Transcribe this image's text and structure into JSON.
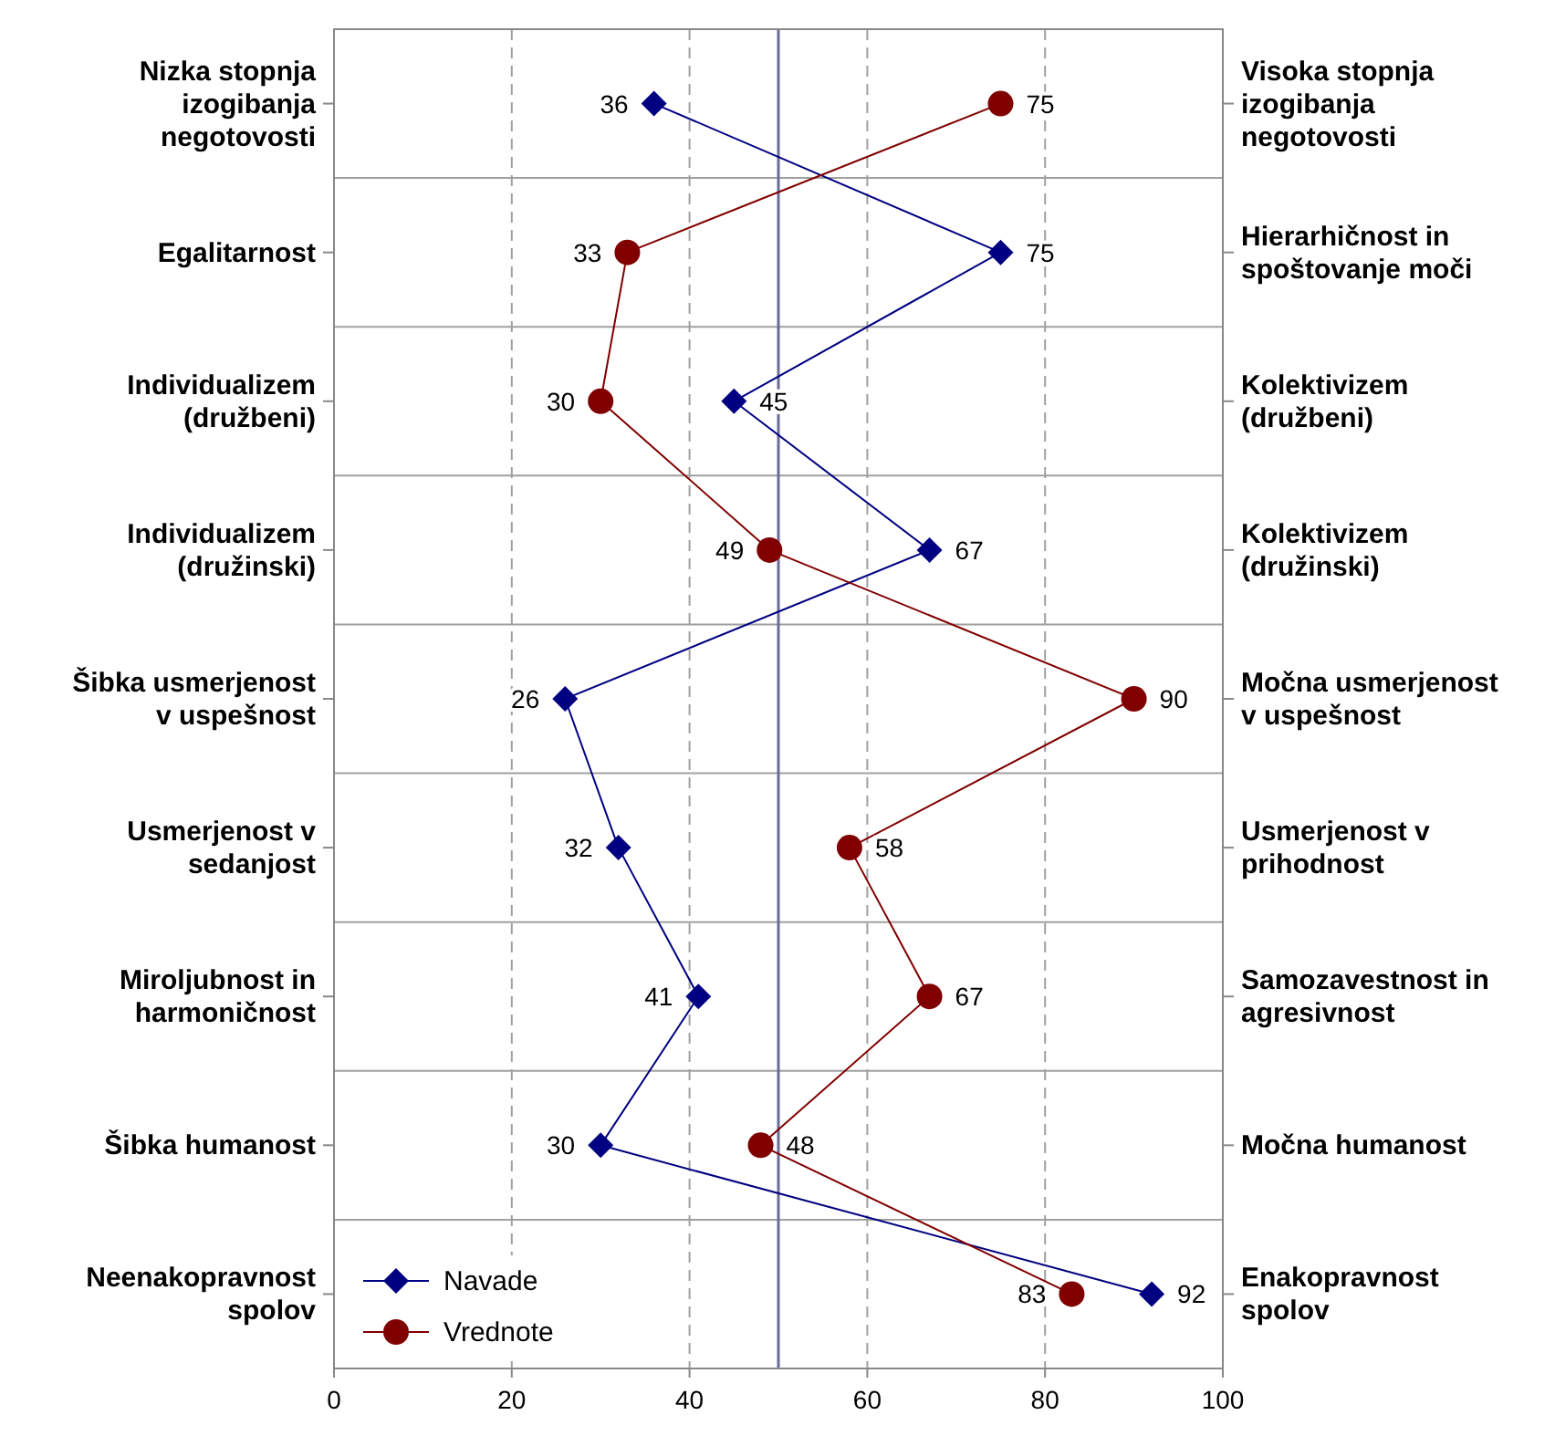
{
  "chart_data": {
    "type": "line",
    "orientation": "horizontal",
    "categories": [
      "Nizka stopnja izogibanja negotovosti",
      "Egalitarnost",
      "Individualizem (družbeni)",
      "Individualizem (družinski)",
      "Šibka usmerjenost v uspešnost",
      "Usmerjenost v sedanjost",
      "Miroljubnost in harmoničnost",
      "Šibka humanost",
      "Neenakopravnost spolov"
    ],
    "y2_categories": [
      "Visoka stopnja izogibanja negotovosti",
      "Hierarhičnost in spoštovanje moči",
      "Kolektivizem (družbeni)",
      "Kolektivizem (družinski)",
      "Močna usmerjenost v uspešnost",
      "Usmerjenost v prihodnost",
      "Samozavestnost in agresivnost",
      "Močna humanost",
      "Enakopravnost spolov"
    ],
    "series": [
      {
        "name": "Navade",
        "color": "#000080",
        "marker": "diamond",
        "values": [
          36,
          75,
          45,
          67,
          26,
          32,
          41,
          30,
          92
        ]
      },
      {
        "name": "Vrednote",
        "color": "#800000",
        "marker": "circle",
        "values": [
          75,
          33,
          30,
          49,
          90,
          58,
          67,
          48,
          83
        ]
      }
    ],
    "xlim": [
      0,
      100
    ],
    "xticks": [
      0,
      20,
      40,
      60,
      80,
      100
    ],
    "grid": true,
    "legend": "bottom left",
    "data_labels": true,
    "ref_lines": [
      {
        "axis": "x",
        "value": 50,
        "color": "#6b6b9a"
      }
    ]
  }
}
